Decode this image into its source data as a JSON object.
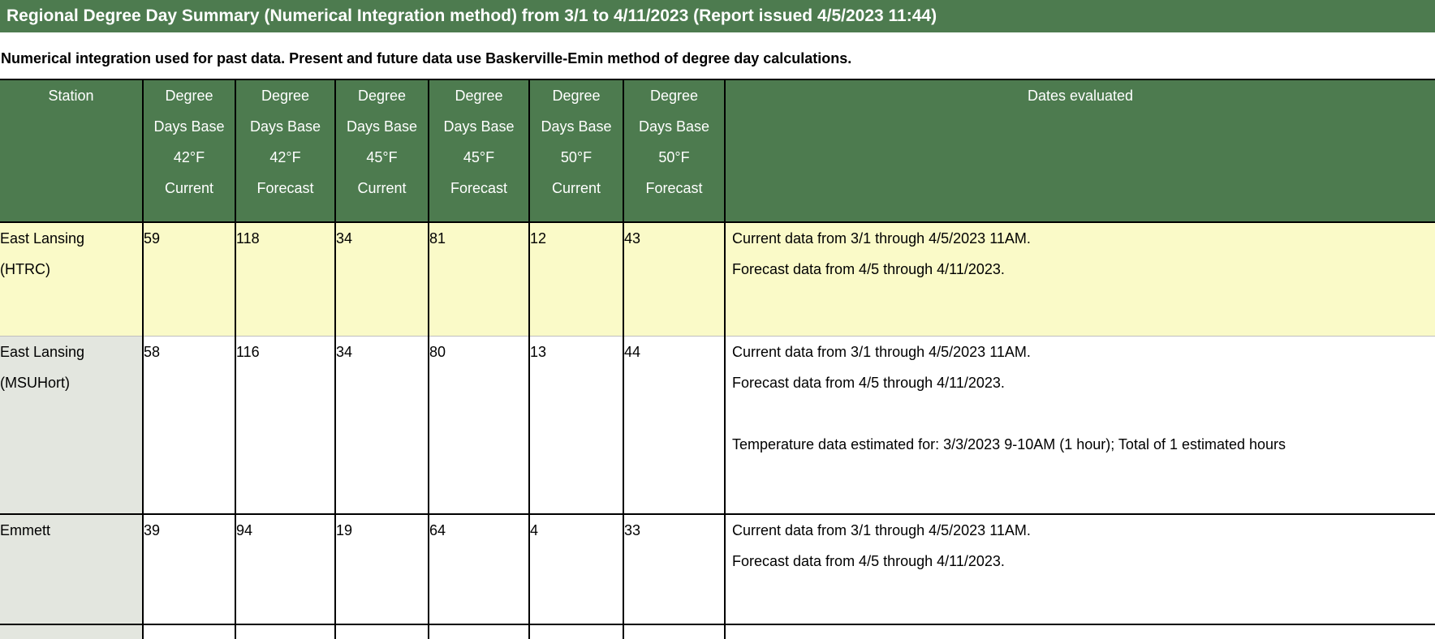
{
  "page": {
    "title": "Regional Degree Day Summary (Numerical Integration method) from 3/1 to 4/11/2023 (Report issued 4/5/2023 11:44)",
    "subtitle": "Numerical integration used for past data. Present and future data use Baskerville-Emin method of degree day calculations."
  },
  "colors": {
    "title_bar_green": "#4D7B4F",
    "table_header_green": "#4D7B4F",
    "highlight_row_yellow": "#FAFAC8",
    "station_cell_gray": "#E3E6DF",
    "header_text": "#FFFFFF",
    "body_text": "#000000"
  },
  "table": {
    "columns": [
      {
        "key": "station",
        "lines": [
          "Station"
        ]
      },
      {
        "key": "dd-base-42f-current",
        "lines": [
          "Degree",
          "Days Base",
          "42°F",
          "Current"
        ]
      },
      {
        "key": "dd-base-42f-forecast",
        "lines": [
          "Degree",
          "Days Base",
          "42°F",
          "Forecast"
        ]
      },
      {
        "key": "dd-base-45f-current",
        "lines": [
          "Degree",
          "Days Base",
          "45°F",
          "Current"
        ]
      },
      {
        "key": "dd-base-45f-forecast",
        "lines": [
          "Degree",
          "Days Base",
          "45°F",
          "Forecast"
        ]
      },
      {
        "key": "dd-base-50f-current",
        "lines": [
          "Degree",
          "Days Base",
          "50°F",
          "Current"
        ]
      },
      {
        "key": "dd-base-50f-forecast",
        "lines": [
          "Degree",
          "Days Base",
          "50°F",
          "Forecast"
        ]
      },
      {
        "key": "dates-evaluated",
        "lines": [
          "Dates evaluated"
        ]
      }
    ],
    "rows": [
      {
        "station_lines": [
          "East Lansing",
          "(HTRC)"
        ],
        "values": [
          "59",
          "118",
          "34",
          "81",
          "12",
          "43"
        ],
        "dates": [
          "Current data from 3/1 through 4/5/2023 11AM.",
          "Forecast data from 4/5 through 4/11/2023."
        ],
        "notes": [],
        "highlighted": true
      },
      {
        "station_lines": [
          "East Lansing",
          "(MSUHort)"
        ],
        "values": [
          "58",
          "116",
          "34",
          "80",
          "13",
          "44"
        ],
        "dates": [
          "Current data from 3/1 through 4/5/2023 11AM.",
          "Forecast data from 4/5 through 4/11/2023."
        ],
        "notes": [
          "Temperature data estimated for: 3/3/2023 9-10AM (1 hour); Total of 1 estimated hours"
        ],
        "highlighted": false
      },
      {
        "station_lines": [
          "Emmett"
        ],
        "values": [
          "39",
          "94",
          "19",
          "64",
          "4",
          "33"
        ],
        "dates": [
          "Current data from 3/1 through 4/5/2023 11AM.",
          "Forecast data from 4/5 through 4/11/2023."
        ],
        "notes": [],
        "highlighted": false
      },
      {
        "station_lines": [],
        "values": [
          "",
          "",
          "",
          "",
          "",
          ""
        ],
        "dates": [],
        "notes": [],
        "highlighted": false
      }
    ]
  }
}
